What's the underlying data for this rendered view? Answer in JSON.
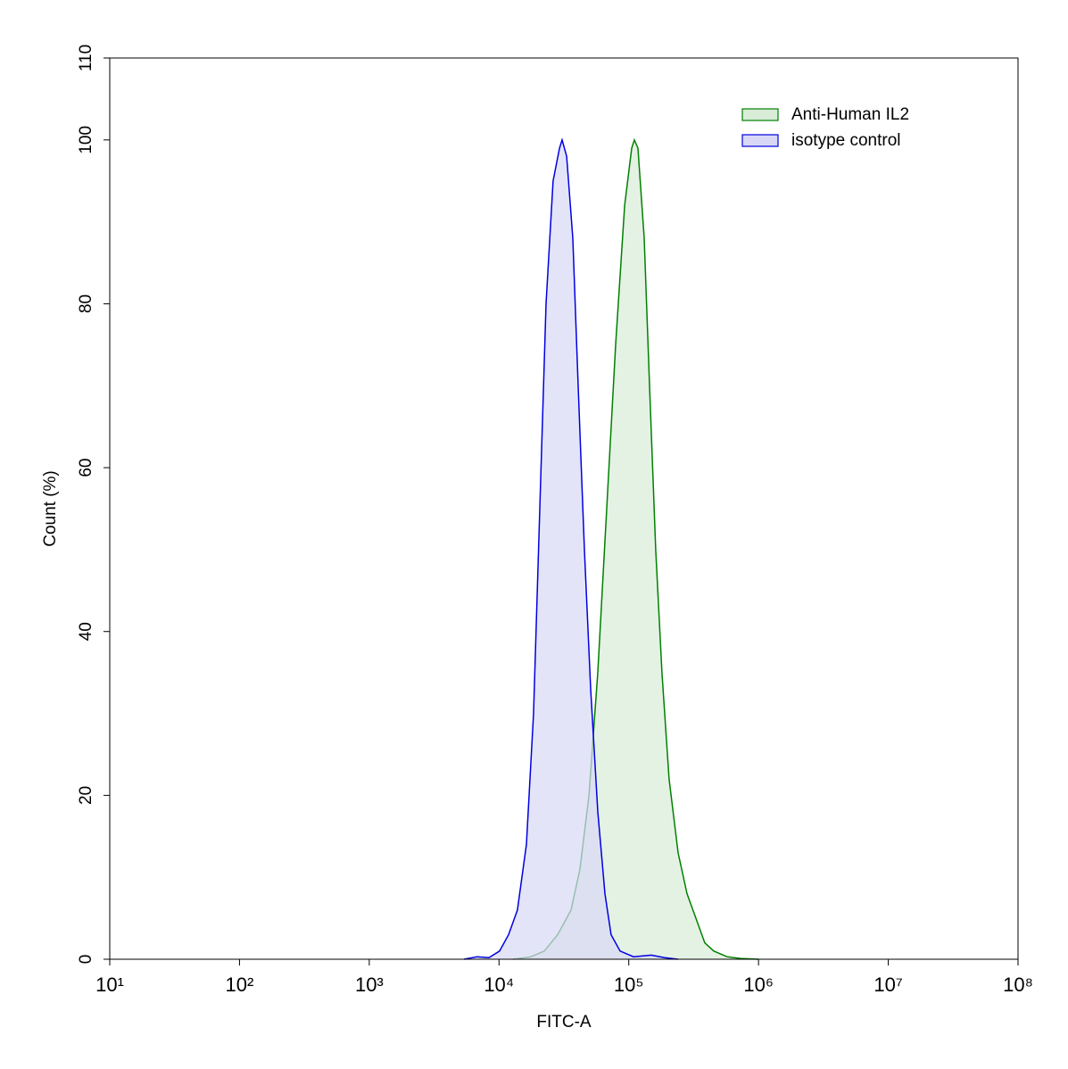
{
  "chart_data": {
    "type": "area",
    "xlabel": "FITC-A",
    "ylabel": "Count  (%)",
    "xscale": "log",
    "xlim": [
      10,
      100000000
    ],
    "xticks": [
      {
        "value": 10,
        "label": "10¹"
      },
      {
        "value": 100,
        "label": "10²"
      },
      {
        "value": 1000,
        "label": "10³"
      },
      {
        "value": 10000,
        "label": "10⁴"
      },
      {
        "value": 100000,
        "label": "10⁵"
      },
      {
        "value": 1000000,
        "label": "10⁶"
      },
      {
        "value": 10000000,
        "label": "10⁷"
      },
      {
        "value": 100000000,
        "label": "10⁸"
      }
    ],
    "ylim": [
      0,
      110
    ],
    "yticks": [
      0,
      20,
      40,
      60,
      80,
      100,
      110
    ],
    "legend": "top-right",
    "series": [
      {
        "name": "Anti-Human IL2",
        "color": "#008000",
        "fill": "#d8ecd8",
        "x": [
          12820,
          17620,
          22340,
          28300,
          35890,
          42070,
          49320,
          57680,
          67610,
          79250,
          92900,
          105400,
          110400,
          117700,
          131500,
          144500,
          161400,
          180300,
          204600,
          239900,
          281200,
          329600,
          385500,
          451900,
          572800,
          726100,
          997700
        ],
        "values": [
          0,
          0.3,
          1,
          3,
          6,
          11,
          20,
          35,
          55,
          75,
          92,
          99,
          100,
          99,
          88,
          70,
          50,
          35,
          22,
          13,
          8,
          5,
          2,
          1,
          0.3,
          0.1,
          0
        ]
      },
      {
        "name": "isotype control",
        "color": "#0000e0",
        "fill": "#d8d8f6",
        "x": [
          5370,
          6800,
          8360,
          10100,
          11850,
          13870,
          16260,
          18450,
          20610,
          23030,
          26120,
          29240,
          30620,
          33190,
          37070,
          40740,
          45500,
          50820,
          57680,
          65460,
          73110,
          85700,
          108700,
          149200,
          189200,
          239900
        ],
        "values": [
          0,
          0.3,
          0.2,
          1,
          3,
          6,
          14,
          30,
          55,
          80,
          95,
          99,
          100,
          98,
          88,
          70,
          50,
          33,
          18,
          8,
          3,
          1,
          0.3,
          0.5,
          0.2,
          0
        ]
      }
    ]
  }
}
